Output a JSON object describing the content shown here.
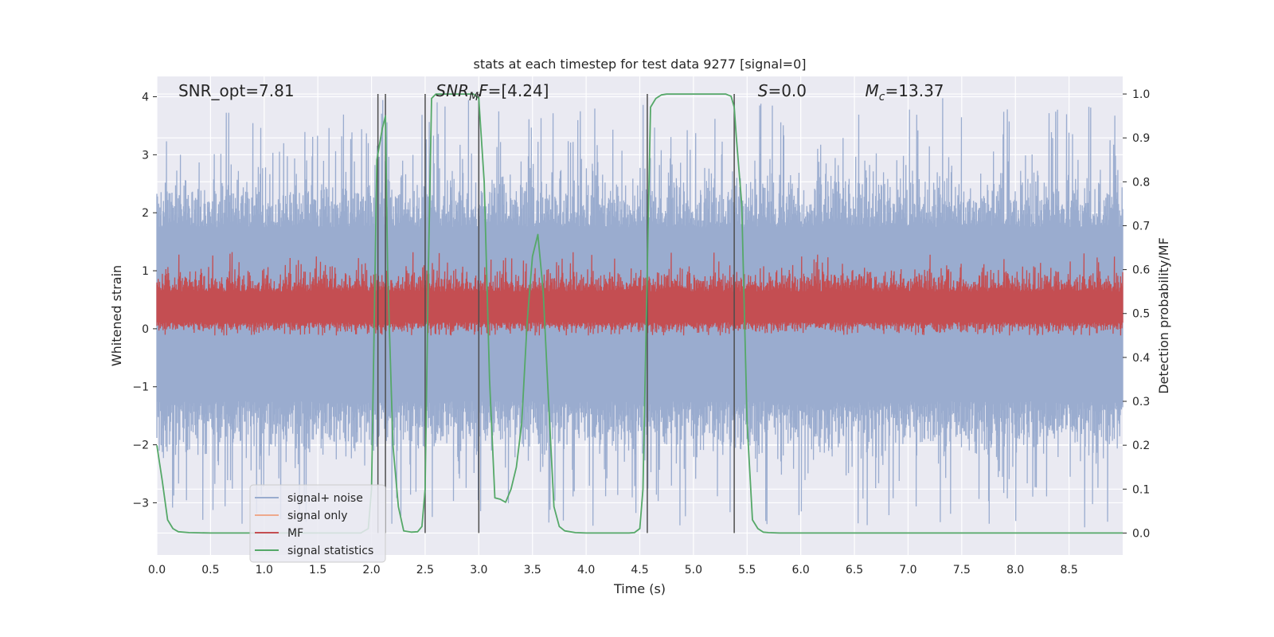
{
  "chart_data": {
    "type": "line",
    "title": "stats at each timestep for test data 9277 [signal=0]",
    "xlabel": "Time (s)",
    "ylabel": "Whitened strain",
    "ylabel_right": "Detection probability/MF",
    "xlim": [
      0.0,
      9.0
    ],
    "ylim_left": [
      -3.9,
      4.35
    ],
    "ylim_right": [
      -0.05,
      1.04
    ],
    "x_ticks": [
      "0.0",
      "0.5",
      "1.0",
      "1.5",
      "2.0",
      "2.5",
      "3.0",
      "3.5",
      "4.0",
      "4.5",
      "5.0",
      "5.5",
      "6.0",
      "6.5",
      "7.0",
      "7.5",
      "8.0",
      "8.5"
    ],
    "y_ticks_left": [
      "4",
      "3",
      "2",
      "1",
      "0",
      "−1",
      "−2",
      "−3"
    ],
    "y_ticks_right": [
      "1.0",
      "0.9",
      "0.8",
      "0.7",
      "0.6",
      "0.5",
      "0.4",
      "0.3",
      "0.2",
      "0.1",
      "0.0"
    ],
    "grid": true,
    "legend_placement": "lower-left",
    "colors": {
      "background": "#eaeaf2",
      "grid": "#ffffff",
      "signal_noise": "#9aaccf",
      "signal_only": "#eea98c",
      "mf": "#c44e52",
      "signal_stats": "#55a868",
      "markers": "#4d4d4d"
    },
    "annotations": [
      {
        "text": "SNR_opt=7.81",
        "x": 0.2,
        "y": 4.1
      },
      {
        "text": "SNR_MF=[4.24]",
        "x": 2.6,
        "y": 4.1
      },
      {
        "text": "S=0.0",
        "x": 5.6,
        "y": 4.1
      },
      {
        "text": "M_c=13.37",
        "x": 6.6,
        "y": 4.1
      }
    ],
    "vertical_markers": [
      2.06,
      2.13,
      2.5,
      3.0,
      4.57,
      5.38
    ],
    "series": [
      {
        "name": "signal+ noise",
        "axis": "left",
        "kind": "noise",
        "envelope": {
          "typical_upper": 1.75,
          "typical_lower": -1.25,
          "peak_upper": 4.0,
          "peak_lower": -3.45
        }
      },
      {
        "name": "signal only",
        "axis": "left",
        "kind": "flat",
        "value": 0.0
      },
      {
        "name": "MF",
        "axis": "right",
        "kind": "noise",
        "envelope": {
          "baseline": 0.5,
          "typical_upper": 0.55,
          "typical_lower": 0.48,
          "peak_upper": 0.64,
          "peak_lower": 0.45
        }
      },
      {
        "name": "signal statistics",
        "axis": "right",
        "x": [
          0.0,
          0.05,
          0.1,
          0.15,
          0.2,
          0.3,
          0.5,
          1.0,
          1.5,
          1.9,
          1.97,
          2.0,
          2.05,
          2.1,
          2.13,
          2.15,
          2.2,
          2.25,
          2.3,
          2.37,
          2.43,
          2.47,
          2.5,
          2.53,
          2.56,
          2.6,
          2.65,
          2.7,
          2.8,
          2.9,
          2.95,
          3.0,
          3.05,
          3.1,
          3.15,
          3.2,
          3.25,
          3.3,
          3.35,
          3.4,
          3.45,
          3.5,
          3.55,
          3.6,
          3.65,
          3.7,
          3.75,
          3.8,
          3.9,
          4.0,
          4.2,
          4.4,
          4.45,
          4.5,
          4.53,
          4.57,
          4.6,
          4.65,
          4.7,
          4.75,
          4.8,
          4.9,
          5.0,
          5.1,
          5.2,
          5.3,
          5.35,
          5.38,
          5.4,
          5.45,
          5.5,
          5.55,
          5.6,
          5.65,
          5.7,
          5.8,
          6.0,
          7.0,
          8.0,
          9.0
        ],
        "y": [
          0.2,
          0.12,
          0.03,
          0.01,
          0.003,
          0.001,
          0.0,
          0.0,
          0.0,
          0.0,
          0.01,
          0.1,
          0.85,
          0.92,
          0.95,
          0.6,
          0.2,
          0.06,
          0.005,
          0.002,
          0.003,
          0.015,
          0.1,
          0.6,
          0.99,
          1.0,
          1.0,
          1.0,
          1.0,
          1.0,
          1.0,
          0.99,
          0.8,
          0.35,
          0.08,
          0.077,
          0.07,
          0.1,
          0.15,
          0.25,
          0.48,
          0.63,
          0.68,
          0.55,
          0.3,
          0.06,
          0.015,
          0.005,
          0.001,
          0.0,
          0.0,
          0.0,
          0.001,
          0.01,
          0.1,
          0.6,
          0.97,
          0.99,
          0.998,
          1.0,
          1.0,
          1.0,
          1.0,
          1.0,
          1.0,
          1.0,
          0.995,
          0.97,
          0.9,
          0.75,
          0.25,
          0.03,
          0.01,
          0.002,
          0.001,
          0.0,
          0.0,
          0.0,
          0.0,
          0.0
        ]
      }
    ]
  }
}
